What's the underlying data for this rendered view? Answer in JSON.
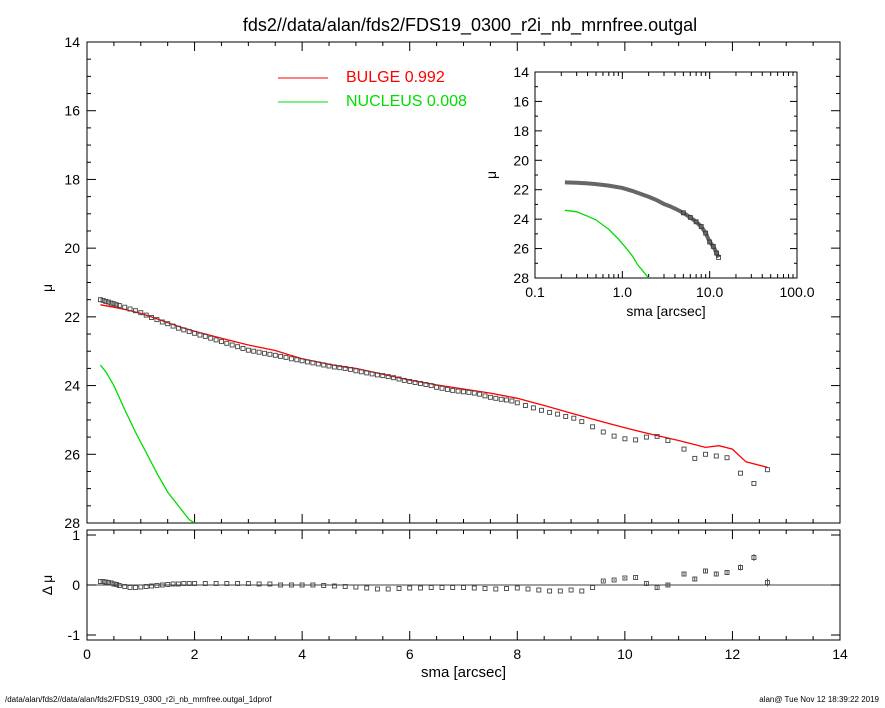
{
  "title": "fds2//data/alan/fds2/FDS19_0300_r2i_nb_mrnfree.outgal",
  "footer": {
    "left": "/data/alan/fds2//data/alan/fds2/FDS19_0300_r2i_nb_mrnfree.outgal_1dprof",
    "right": "alan@  Tue Nov 12 18:39:22 2019"
  },
  "colors": {
    "bulge": "#ff0000",
    "nucleus": "#00dd00",
    "data": "#000000"
  },
  "chart_data": [
    {
      "id": "main",
      "type": "scatter",
      "xlabel": "",
      "ylabel": "μ",
      "xlim": [
        0,
        14
      ],
      "ylim": [
        28,
        14
      ],
      "y_inverted": true,
      "xticks": [
        "0",
        "2",
        "4",
        "6",
        "8",
        "10",
        "12",
        "14"
      ],
      "yticks": [
        "14",
        "16",
        "18",
        "20",
        "22",
        "24",
        "26",
        "28"
      ],
      "legend": {
        "placement": "top-center",
        "entries": [
          {
            "label": "BULGE  0.992",
            "color": "#ff0000"
          },
          {
            "label": "NUCLEUS  0.008",
            "color": "#00dd00"
          }
        ]
      },
      "series": [
        {
          "name": "",
          "kind": "points",
          "x": [
            0.25,
            0.3,
            0.35,
            0.4,
            0.45,
            0.5,
            0.55,
            0.6,
            0.7,
            0.8,
            0.9,
            1.0,
            1.1,
            1.2,
            1.3,
            1.4,
            1.5,
            1.6,
            1.7,
            1.8,
            1.9,
            2.0,
            2.1,
            2.2,
            2.3,
            2.4,
            2.5,
            2.6,
            2.7,
            2.8,
            2.9,
            3.0,
            3.1,
            3.2,
            3.3,
            3.4,
            3.5,
            3.6,
            3.7,
            3.8,
            3.9,
            4.0,
            4.1,
            4.2,
            4.3,
            4.4,
            4.5,
            4.6,
            4.7,
            4.8,
            4.9,
            5.0,
            5.1,
            5.2,
            5.3,
            5.4,
            5.5,
            5.6,
            5.7,
            5.8,
            5.9,
            6.0,
            6.1,
            6.2,
            6.3,
            6.4,
            6.5,
            6.6,
            6.7,
            6.8,
            6.9,
            7.0,
            7.1,
            7.2,
            7.3,
            7.4,
            7.5,
            7.6,
            7.7,
            7.8,
            7.9,
            8.0,
            8.15,
            8.3,
            8.45,
            8.6,
            8.75,
            8.9,
            9.05,
            9.2,
            9.4,
            9.6,
            9.8,
            10.0,
            10.2,
            10.4,
            10.6,
            10.8,
            11.1,
            11.3,
            11.5,
            11.7,
            11.9,
            12.15,
            12.4,
            12.65
          ],
          "y": [
            21.5,
            21.52,
            21.55,
            21.57,
            21.6,
            21.62,
            21.65,
            21.67,
            21.72,
            21.77,
            21.82,
            21.88,
            21.95,
            22.02,
            22.08,
            22.15,
            22.2,
            22.27,
            22.33,
            22.38,
            22.43,
            22.48,
            22.53,
            22.57,
            22.62,
            22.67,
            22.72,
            22.77,
            22.82,
            22.87,
            22.92,
            22.97,
            23.0,
            23.03,
            23.06,
            23.09,
            23.12,
            23.15,
            23.18,
            23.22,
            23.25,
            23.28,
            23.31,
            23.34,
            23.37,
            23.4,
            23.43,
            23.46,
            23.48,
            23.5,
            23.53,
            23.57,
            23.6,
            23.63,
            23.66,
            23.69,
            23.71,
            23.74,
            23.77,
            23.81,
            23.85,
            23.88,
            23.91,
            23.94,
            23.97,
            24.0,
            24.05,
            24.08,
            24.11,
            24.14,
            24.16,
            24.18,
            24.2,
            24.22,
            24.25,
            24.3,
            24.34,
            24.37,
            24.4,
            24.42,
            24.45,
            24.5,
            24.58,
            24.65,
            24.72,
            24.78,
            24.83,
            24.9,
            24.95,
            25.05,
            25.2,
            25.35,
            25.47,
            25.55,
            25.58,
            25.5,
            25.48,
            25.6,
            25.85,
            26.12,
            26.0,
            26.05,
            26.1,
            26.55,
            26.85,
            26.45
          ]
        },
        {
          "name": "",
          "kind": "line",
          "color": "#ff0000",
          "x": [
            0.25,
            0.5,
            0.75,
            1.0,
            1.25,
            1.5,
            1.75,
            2.0,
            2.25,
            2.5,
            2.75,
            3.0,
            3.25,
            3.5,
            3.75,
            4.0,
            4.25,
            4.5,
            4.75,
            5.0,
            5.5,
            6.0,
            6.5,
            7.0,
            7.5,
            8.0,
            8.5,
            9.0,
            9.5,
            10.0,
            10.5,
            11.0,
            11.5,
            11.75,
            12.0,
            12.25,
            12.65
          ],
          "y": [
            21.65,
            21.72,
            21.8,
            21.9,
            22.03,
            22.17,
            22.3,
            22.42,
            22.52,
            22.62,
            22.72,
            22.82,
            22.9,
            22.98,
            23.1,
            23.22,
            23.3,
            23.38,
            23.45,
            23.5,
            23.67,
            23.84,
            23.98,
            24.1,
            24.22,
            24.37,
            24.58,
            24.8,
            25.02,
            25.23,
            25.42,
            25.6,
            25.8,
            25.75,
            25.85,
            26.22,
            26.38
          ]
        },
        {
          "name": "",
          "kind": "line",
          "color": "#00dd00",
          "x": [
            0.25,
            0.35,
            0.5,
            0.7,
            0.9,
            1.1,
            1.3,
            1.5,
            1.7,
            1.9,
            2.0
          ],
          "y": [
            23.4,
            23.6,
            24.0,
            24.7,
            25.35,
            25.95,
            26.55,
            27.1,
            27.5,
            27.9,
            28.05
          ]
        }
      ]
    },
    {
      "id": "inset",
      "type": "scatter",
      "xlabel": "sma [arcsec]",
      "ylabel": "μ",
      "xscale": "log",
      "xlim": [
        0.1,
        100.0
      ],
      "ylim": [
        28,
        14
      ],
      "y_inverted": true,
      "xticks": [
        "0.1",
        "1.0",
        "10.0",
        "100.0"
      ],
      "yticks": [
        "14",
        "16",
        "18",
        "20",
        "22",
        "24",
        "26",
        "28"
      ],
      "series": [
        {
          "name": "",
          "kind": "points",
          "x": [
            0.22,
            0.3,
            0.4,
            0.5,
            0.7,
            1.0,
            1.3,
            1.6,
            2.0,
            2.5,
            3.0,
            3.5,
            4.0,
            5.0,
            6.0,
            7.0,
            8.0,
            9.0,
            10.0,
            11.0,
            12.0,
            12.65
          ],
          "y": [
            21.5,
            21.52,
            21.57,
            21.62,
            21.72,
            21.88,
            22.08,
            22.27,
            22.48,
            22.72,
            22.97,
            23.12,
            23.28,
            23.57,
            23.88,
            24.18,
            24.5,
            24.95,
            25.55,
            25.85,
            26.3,
            26.6
          ]
        },
        {
          "name": "",
          "kind": "line",
          "color": "#00dd00",
          "x": [
            0.22,
            0.3,
            0.4,
            0.5,
            0.7,
            0.9,
            1.1,
            1.3,
            1.5,
            1.7,
            2.0
          ],
          "y": [
            23.4,
            23.5,
            23.8,
            24.05,
            24.7,
            25.35,
            25.95,
            26.5,
            27.1,
            27.5,
            28.05
          ]
        }
      ]
    },
    {
      "id": "residual",
      "type": "scatter",
      "xlabel": "sma [arcsec]",
      "ylabel": "Δ μ",
      "xlim": [
        0,
        14
      ],
      "ylim": [
        -1.1,
        1.1
      ],
      "xticks": [
        "0",
        "2",
        "4",
        "6",
        "8",
        "10",
        "12",
        "14"
      ],
      "yticks": [
        "-1",
        "0",
        "1"
      ],
      "series": [
        {
          "name": "",
          "kind": "points_with_errors",
          "x": [
            0.25,
            0.3,
            0.35,
            0.4,
            0.45,
            0.5,
            0.55,
            0.6,
            0.7,
            0.8,
            0.9,
            1.0,
            1.1,
            1.2,
            1.3,
            1.4,
            1.5,
            1.6,
            1.7,
            1.8,
            1.9,
            2.0,
            2.2,
            2.4,
            2.6,
            2.8,
            3.0,
            3.2,
            3.4,
            3.6,
            3.8,
            4.0,
            4.2,
            4.4,
            4.6,
            4.8,
            5.0,
            5.2,
            5.4,
            5.6,
            5.8,
            6.0,
            6.2,
            6.4,
            6.6,
            6.8,
            7.0,
            7.2,
            7.4,
            7.6,
            7.8,
            8.0,
            8.2,
            8.4,
            8.6,
            8.8,
            9.0,
            9.2,
            9.4,
            9.6,
            9.8,
            10.0,
            10.2,
            10.4,
            10.6,
            10.8,
            11.1,
            11.3,
            11.5,
            11.7,
            11.9,
            12.15,
            12.4,
            12.65
          ],
          "y": [
            0.07,
            0.07,
            0.06,
            0.05,
            0.04,
            0.02,
            0.01,
            -0.01,
            -0.03,
            -0.05,
            -0.05,
            -0.04,
            -0.03,
            -0.02,
            -0.01,
            0.0,
            0.01,
            0.02,
            0.02,
            0.03,
            0.03,
            0.03,
            0.03,
            0.03,
            0.03,
            0.03,
            0.03,
            0.02,
            0.02,
            0.0,
            0.0,
            0.0,
            0.0,
            -0.01,
            -0.02,
            -0.03,
            -0.04,
            -0.06,
            -0.08,
            -0.08,
            -0.07,
            -0.06,
            -0.06,
            -0.05,
            -0.05,
            -0.05,
            -0.05,
            -0.06,
            -0.07,
            -0.08,
            -0.07,
            -0.06,
            -0.08,
            -0.1,
            -0.12,
            -0.12,
            -0.1,
            -0.12,
            -0.05,
            0.08,
            0.1,
            0.14,
            0.15,
            0.03,
            -0.05,
            0.0,
            0.22,
            0.12,
            0.28,
            0.22,
            0.25,
            0.35,
            0.55,
            0.05
          ],
          "err": [
            0.01,
            0.01,
            0.01,
            0.01,
            0.01,
            0.01,
            0.01,
            0.01,
            0.01,
            0.01,
            0.01,
            0.01,
            0.01,
            0.01,
            0.01,
            0.01,
            0.01,
            0.01,
            0.01,
            0.01,
            0.01,
            0.01,
            0.01,
            0.01,
            0.01,
            0.01,
            0.01,
            0.01,
            0.01,
            0.01,
            0.01,
            0.01,
            0.01,
            0.01,
            0.01,
            0.01,
            0.01,
            0.01,
            0.01,
            0.01,
            0.01,
            0.01,
            0.01,
            0.01,
            0.01,
            0.01,
            0.01,
            0.01,
            0.01,
            0.01,
            0.01,
            0.01,
            0.01,
            0.01,
            0.01,
            0.01,
            0.01,
            0.01,
            0.01,
            0.02,
            0.02,
            0.02,
            0.02,
            0.02,
            0.03,
            0.03,
            0.03,
            0.04,
            0.04,
            0.05,
            0.05,
            0.06,
            0.07,
            0.08
          ]
        }
      ]
    }
  ]
}
